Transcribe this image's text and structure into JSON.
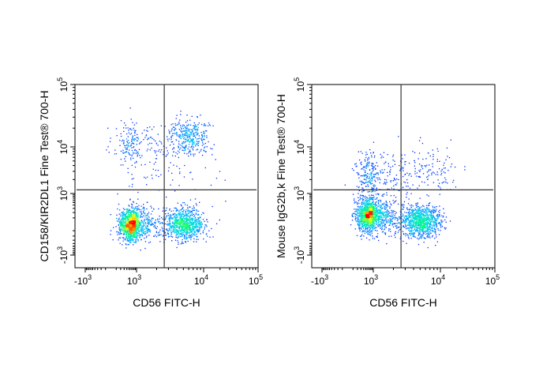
{
  "chart_data": [
    {
      "type": "scatter",
      "subtype": "flow-cytometry pseudocolor density dot plot",
      "xlabel": "CD56 FITC-H",
      "ylabel": "CD158/KIR2DL1 Fine Test® 700-H",
      "x_scale": "biexponential",
      "y_scale": "biexponential",
      "xlim": [
        -2000,
        100000
      ],
      "ylim": [
        -2000,
        100000
      ],
      "x_ticks": [
        {
          "base": "-10",
          "exp": "3",
          "value": -1000
        },
        {
          "base": "10",
          "exp": "3",
          "value": 1000
        },
        {
          "base": "10",
          "exp": "4",
          "value": 10000
        },
        {
          "base": "10",
          "exp": "5",
          "value": 100000
        }
      ],
      "y_ticks": [
        {
          "base": "-10",
          "exp": "3",
          "value": -1000
        },
        {
          "base": "10",
          "exp": "3",
          "value": 1000
        },
        {
          "base": "10",
          "exp": "4",
          "value": 10000
        },
        {
          "base": "10",
          "exp": "5",
          "value": 100000
        }
      ],
      "quadrant_gate": {
        "x": 2600,
        "y": 1200
      },
      "colormap": [
        "#0000ff",
        "#00c8ff",
        "#00ff80",
        "#ffff00",
        "#ff0000"
      ],
      "populations": [
        {
          "x": 600,
          "y": 0,
          "events": 1400
        },
        {
          "x": 5000,
          "y": 0,
          "events": 900
        },
        {
          "x": 6000,
          "y": 15000,
          "events": 350
        },
        {
          "x": 800,
          "y": 12000,
          "events": 200
        },
        {
          "x": 2000,
          "y": 3000,
          "events": 80
        }
      ],
      "grid": false
    },
    {
      "type": "scatter",
      "subtype": "flow-cytometry pseudocolor density dot plot",
      "xlabel": "CD56 FITC-H",
      "ylabel": "Mouse IgG2b,k Fine Test® 700-H",
      "x_scale": "biexponential",
      "y_scale": "biexponential",
      "xlim": [
        -2000,
        100000
      ],
      "ylim": [
        -2000,
        100000
      ],
      "x_ticks": [
        {
          "base": "-10",
          "exp": "3",
          "value": -1000
        },
        {
          "base": "10",
          "exp": "3",
          "value": 1000
        },
        {
          "base": "10",
          "exp": "4",
          "value": 10000
        },
        {
          "base": "10",
          "exp": "5",
          "value": 100000
        }
      ],
      "y_ticks": [
        {
          "base": "-10",
          "exp": "3",
          "value": -1000
        },
        {
          "base": "10",
          "exp": "3",
          "value": 1000
        },
        {
          "base": "10",
          "exp": "4",
          "value": 10000
        },
        {
          "base": "10",
          "exp": "5",
          "value": 100000
        }
      ],
      "quadrant_gate": {
        "x": 2600,
        "y": 1200
      },
      "colormap": [
        "#0000ff",
        "#00c8ff",
        "#00ff80",
        "#ffff00",
        "#ff0000"
      ],
      "populations": [
        {
          "x": 700,
          "y": 150,
          "events": 1500
        },
        {
          "x": 5000,
          "y": 50,
          "events": 1000
        },
        {
          "x": 800,
          "y": 2500,
          "events": 300
        },
        {
          "x": 6000,
          "y": 3000,
          "events": 150
        }
      ],
      "grid": false
    }
  ]
}
